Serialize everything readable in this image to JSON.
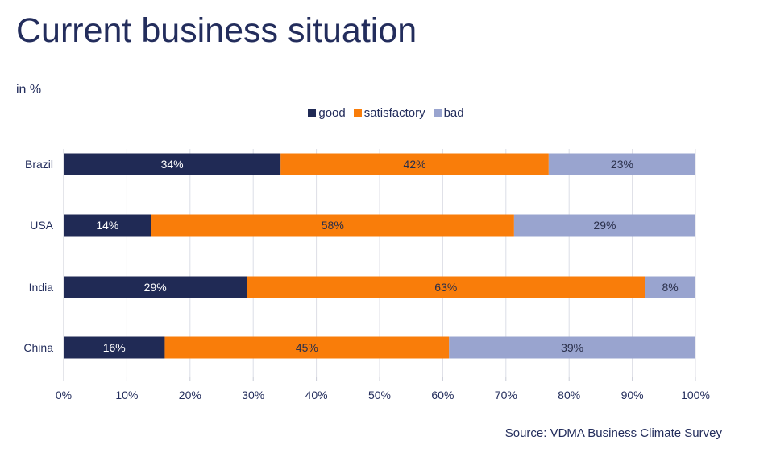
{
  "title": "Current business situation",
  "unit": "in %",
  "source": "Source: VDMA Business Climate Survey",
  "chart_data": {
    "type": "bar",
    "orientation": "horizontal",
    "stacked": "percent",
    "categories": [
      "Brazil",
      "USA",
      "India",
      "China"
    ],
    "series": [
      {
        "name": "good",
        "color": "#202a55",
        "label_color": "#ffffff",
        "values": [
          34,
          14,
          29,
          16
        ]
      },
      {
        "name": "satisfactory",
        "color": "#f97d0a",
        "label_color": "#2a2f4a",
        "values": [
          42,
          58,
          63,
          45
        ]
      },
      {
        "name": "bad",
        "color": "#99a4cf",
        "label_color": "#2a2f4a",
        "values": [
          23,
          29,
          8,
          39
        ]
      }
    ],
    "xlim": [
      0,
      100
    ],
    "xticks": [
      "0%",
      "10%",
      "20%",
      "30%",
      "40%",
      "50%",
      "60%",
      "70%",
      "80%",
      "90%",
      "100%"
    ],
    "grid": true,
    "legend": "top"
  }
}
